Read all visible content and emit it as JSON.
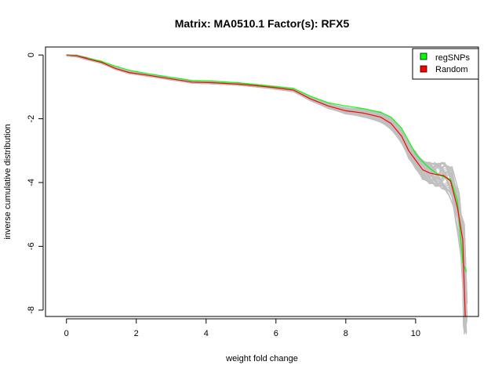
{
  "chart_data": {
    "type": "line",
    "title": "Matrix: MA0510.1 Factor(s): RFX5",
    "xlabel": "weight fold change",
    "ylabel": "inverse cumulative distribution",
    "xlim": [
      -0.6,
      11.8
    ],
    "ylim": [
      -8.2,
      0.25
    ],
    "x_ticks": [
      0,
      2,
      4,
      6,
      8,
      10
    ],
    "y_ticks": [
      0,
      -2,
      -4,
      -6,
      -8
    ],
    "x_tick_labels": [
      "0",
      "2",
      "4",
      "6",
      "8",
      "10"
    ],
    "y_tick_labels": [
      "0",
      "-2",
      "-4",
      "-6",
      "-8"
    ],
    "grid": false,
    "legend_position": "top-right",
    "legend": [
      {
        "label": "regSNPs",
        "color": "#00ff00"
      },
      {
        "label": "Random",
        "color": "#ff0000"
      }
    ],
    "background_color": "#c0c0c0",
    "series": [
      {
        "name": "regSNPs",
        "color": "#00ff00",
        "x": [
          0,
          0.3,
          0.6,
          1.0,
          1.4,
          1.8,
          2.3,
          3.0,
          3.6,
          4.2,
          5.0,
          5.6,
          6.0,
          6.5,
          7.0,
          7.5,
          8.0,
          8.5,
          9.0,
          9.3,
          9.6,
          9.8,
          10.0,
          10.2,
          10.4,
          10.6,
          10.8,
          11.0,
          11.2,
          11.35,
          11.45
        ],
        "y": [
          0,
          -0.02,
          -0.1,
          -0.2,
          -0.35,
          -0.48,
          -0.58,
          -0.7,
          -0.8,
          -0.82,
          -0.88,
          -0.95,
          -1.0,
          -1.05,
          -1.3,
          -1.5,
          -1.6,
          -1.68,
          -1.8,
          -1.95,
          -2.3,
          -2.7,
          -3.1,
          -3.35,
          -3.55,
          -3.72,
          -3.82,
          -3.9,
          -4.6,
          -6.5,
          -6.8
        ]
      },
      {
        "name": "Random",
        "color": "#ff0000",
        "x": [
          0,
          0.3,
          0.6,
          1.0,
          1.4,
          1.8,
          2.3,
          3.0,
          3.6,
          4.2,
          5.0,
          5.6,
          6.0,
          6.5,
          7.0,
          7.5,
          8.0,
          8.5,
          9.0,
          9.3,
          9.6,
          9.8,
          10.0,
          10.2,
          10.4,
          10.6,
          10.8,
          11.0,
          11.2,
          11.35,
          11.42
        ],
        "y": [
          0,
          -0.03,
          -0.12,
          -0.23,
          -0.42,
          -0.55,
          -0.63,
          -0.75,
          -0.85,
          -0.87,
          -0.92,
          -0.98,
          -1.03,
          -1.1,
          -1.38,
          -1.6,
          -1.75,
          -1.82,
          -1.95,
          -2.15,
          -2.55,
          -3.0,
          -3.3,
          -3.6,
          -3.7,
          -3.75,
          -3.78,
          -3.95,
          -4.8,
          -5.8,
          -8.2
        ]
      }
    ]
  }
}
